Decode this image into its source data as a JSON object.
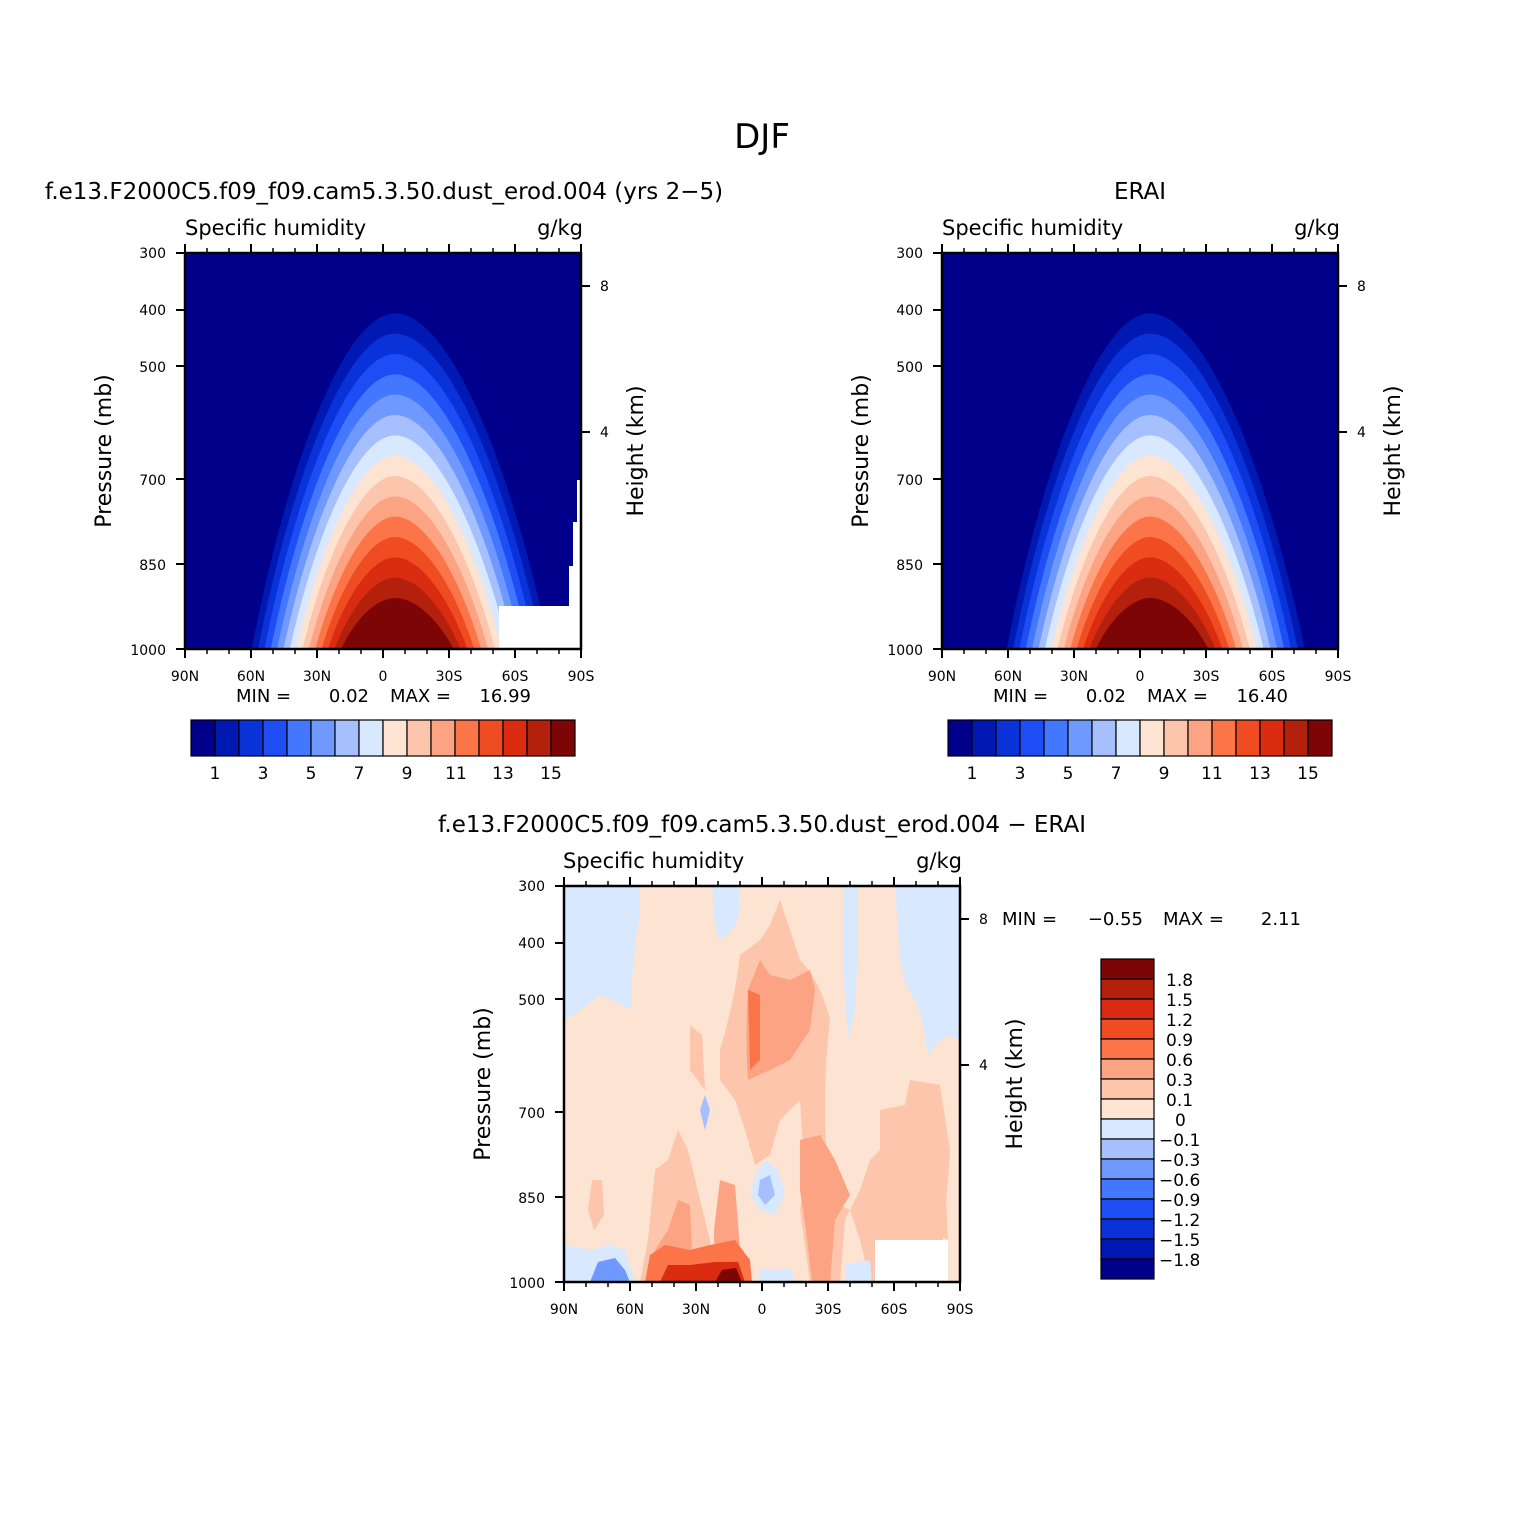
{
  "figure_title": "DJF",
  "chart_data": [
    {
      "type": "heatmap",
      "title": "f.e13.F2000C5.f09_f09.cam5.3.50.dust_erod.004 (yrs 2-5)",
      "left_subtitle": "Specific humidity",
      "right_subtitle": "g/kg",
      "ylabel": "Pressure (mb)",
      "right_ylabel": "Height (km)",
      "x_ticks": [
        "90N",
        "60N",
        "30N",
        "0",
        "30S",
        "60S",
        "90S"
      ],
      "y_ticks": [
        "300",
        "400",
        "500",
        "700",
        "850",
        "1000"
      ],
      "right_ticks": [
        "8",
        "4"
      ],
      "min_label": "MIN =",
      "min_value": "0.02",
      "max_label": "MAX =",
      "max_value": "16.99",
      "max_data": 16.99,
      "orography": true,
      "colorbar_labels": [
        "1",
        "3",
        "5",
        "7",
        "9",
        "11",
        "13",
        "15"
      ]
    },
    {
      "type": "heatmap",
      "title": "ERAI",
      "left_subtitle": "Specific humidity",
      "right_subtitle": "g/kg",
      "ylabel": "Pressure (mb)",
      "right_ylabel": "Height (km)",
      "x_ticks": [
        "90N",
        "60N",
        "30N",
        "0",
        "30S",
        "60S",
        "90S"
      ],
      "y_ticks": [
        "300",
        "400",
        "500",
        "700",
        "850",
        "1000"
      ],
      "right_ticks": [
        "8",
        "4"
      ],
      "min_label": "MIN =",
      "min_value": "0.02",
      "max_label": "MAX =",
      "max_value": "16.40",
      "max_data": 16.4,
      "orography": false,
      "colorbar_labels": [
        "1",
        "3",
        "5",
        "7",
        "9",
        "11",
        "13",
        "15"
      ]
    },
    {
      "type": "heatmap",
      "title": "f.e13.F2000C5.f09_f09.cam5.3.50.dust_erod.004 - ERAI",
      "left_subtitle": "Specific humidity",
      "right_subtitle": "g/kg",
      "ylabel": "Pressure (mb)",
      "right_ylabel": "Height (km)",
      "x_ticks": [
        "90N",
        "60N",
        "30N",
        "0",
        "30S",
        "60S",
        "90S"
      ],
      "y_ticks": [
        "300",
        "400",
        "500",
        "700",
        "850",
        "1000"
      ],
      "right_ticks": [
        "8",
        "4"
      ],
      "min_label": "MIN =",
      "min_value": "-0.55",
      "max_label": "MAX =",
      "max_value": "2.11",
      "colorbar_labels": [
        "1.8",
        "1.5",
        "1.2",
        "0.9",
        "0.6",
        "0.3",
        "0.1",
        "0",
        "-0.1",
        "-0.3",
        "-0.6",
        "-0.9",
        "-1.2",
        "-1.5",
        "-1.8"
      ]
    }
  ],
  "colors": {
    "fill_levels": [
      "#00008b",
      "#0019b3",
      "#0933d9",
      "#1e4df5",
      "#4477ff",
      "#7099ff",
      "#a6c0ff",
      "#d8e8ff",
      "#fde3d2",
      "#fdc5ab",
      "#fca383",
      "#fc7548",
      "#f04c22",
      "#d92c10",
      "#b3200b",
      "#7d0505"
    ]
  }
}
